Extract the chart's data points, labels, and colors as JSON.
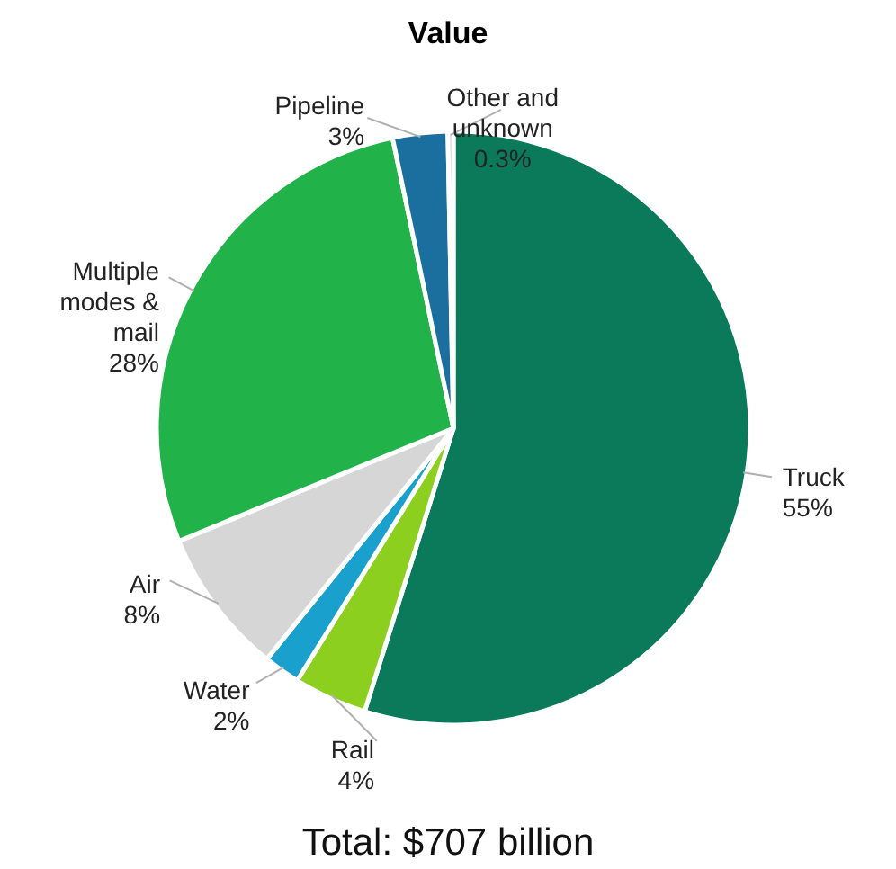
{
  "chart_data": {
    "type": "pie",
    "title": "Value",
    "categories": [
      "Truck",
      "Rail",
      "Water",
      "Air",
      "Multiple modes & mail",
      "Pipeline",
      "Other and unknown"
    ],
    "values": [
      55,
      4,
      2,
      8,
      28,
      3,
      0.3
    ],
    "colors": [
      "#0a7a5a",
      "#8ccf1e",
      "#1aa0cc",
      "#d6d6d6",
      "#22b24a",
      "#1a6f9e",
      "#c8c8c8"
    ],
    "value_labels": [
      "55%",
      "4%",
      "2%",
      "8%",
      "28%",
      "3%",
      "0.3%"
    ],
    "annotations": [
      "Total: $707 billion"
    ]
  }
}
